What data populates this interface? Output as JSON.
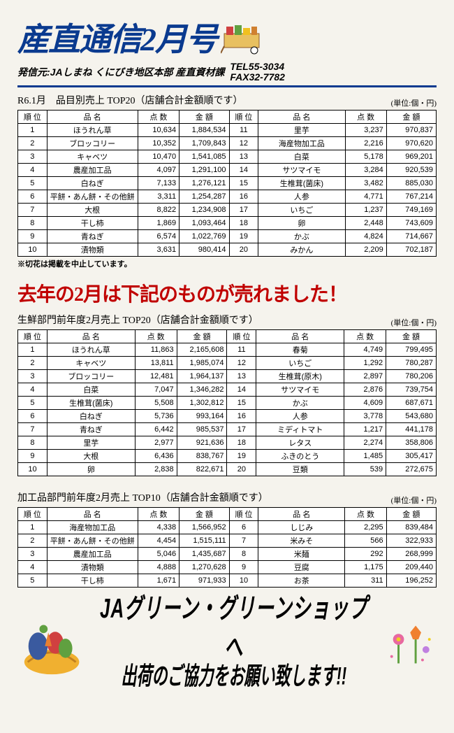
{
  "header": {
    "title": "産直通信2月号",
    "publisher": "発信元:JAしまね くにびき地区本部 産直資材課",
    "tel": "TEL55-3034",
    "fax": "FAX32-7782"
  },
  "table1": {
    "title": "R6.1月　品目別売上 TOP20（店舗合計金額順です）",
    "unit": "(単位:個・円)",
    "headers": [
      "順 位",
      "品 名",
      "点 数",
      "金 額",
      "順 位",
      "品 名",
      "点 数",
      "金 額"
    ],
    "rows": [
      [
        "1",
        "ほうれん草",
        "10,634",
        "1,884,534",
        "11",
        "里芋",
        "3,237",
        "970,837"
      ],
      [
        "2",
        "ブロッコリー",
        "10,352",
        "1,709,843",
        "12",
        "海産物加工品",
        "2,216",
        "970,620"
      ],
      [
        "3",
        "キャベツ",
        "10,470",
        "1,541,085",
        "13",
        "白菜",
        "5,178",
        "969,201"
      ],
      [
        "4",
        "農産加工品",
        "4,097",
        "1,291,100",
        "14",
        "サツマイモ",
        "3,284",
        "920,539"
      ],
      [
        "5",
        "白ねぎ",
        "7,133",
        "1,276,121",
        "15",
        "生椎茸(菌床)",
        "3,482",
        "885,030"
      ],
      [
        "6",
        "平餅・あん餅・その他餅",
        "3,311",
        "1,254,287",
        "16",
        "人参",
        "4,771",
        "767,214"
      ],
      [
        "7",
        "大根",
        "8,822",
        "1,234,908",
        "17",
        "いちご",
        "1,237",
        "749,169"
      ],
      [
        "8",
        "干し柿",
        "1,869",
        "1,093,464",
        "18",
        "卵",
        "2,448",
        "743,609"
      ],
      [
        "9",
        "青ねぎ",
        "6,574",
        "1,022,769",
        "19",
        "かぶ",
        "4,824",
        "714,667"
      ],
      [
        "10",
        "漬物類",
        "3,631",
        "980,414",
        "20",
        "みかん",
        "2,209",
        "702,187"
      ]
    ],
    "note": "※切花は掲載を中止しています。"
  },
  "banner": "去年の2月は下記のものが売れました！",
  "table2": {
    "title": "生鮮部門前年度2月売上 TOP20（店舗合計金額順です）",
    "unit": "(単位:個・円)",
    "headers": [
      "順 位",
      "品 名",
      "点 数",
      "金 額",
      "順 位",
      "品 名",
      "点 数",
      "金 額"
    ],
    "rows": [
      [
        "1",
        "ほうれん草",
        "11,863",
        "2,165,608",
        "11",
        "春菊",
        "4,749",
        "799,495"
      ],
      [
        "2",
        "キャベツ",
        "13,811",
        "1,985,074",
        "12",
        "いちご",
        "1,292",
        "780,287"
      ],
      [
        "3",
        "ブロッコリー",
        "12,481",
        "1,964,137",
        "13",
        "生椎茸(原木)",
        "2,897",
        "780,206"
      ],
      [
        "4",
        "白菜",
        "7,047",
        "1,346,282",
        "14",
        "サツマイモ",
        "2,876",
        "739,754"
      ],
      [
        "5",
        "生椎茸(菌床)",
        "5,508",
        "1,302,812",
        "15",
        "かぶ",
        "4,609",
        "687,671"
      ],
      [
        "6",
        "白ねぎ",
        "5,736",
        "993,164",
        "16",
        "人参",
        "3,778",
        "543,680"
      ],
      [
        "7",
        "青ねぎ",
        "6,442",
        "985,537",
        "17",
        "ミディトマト",
        "1,217",
        "441,178"
      ],
      [
        "8",
        "里芋",
        "2,977",
        "921,636",
        "18",
        "レタス",
        "2,274",
        "358,806"
      ],
      [
        "9",
        "大根",
        "6,436",
        "838,767",
        "19",
        "ふきのとう",
        "1,485",
        "305,417"
      ],
      [
        "10",
        "卵",
        "2,838",
        "822,671",
        "20",
        "豆類",
        "539",
        "272,675"
      ]
    ]
  },
  "table3": {
    "title": "加工品部門前年度2月売上 TOP10（店舗合計金額順です）",
    "unit": "(単位:個・円)",
    "headers": [
      "順 位",
      "品 名",
      "点 数",
      "金 額",
      "順 位",
      "品 名",
      "点 数",
      "金 額"
    ],
    "rows": [
      [
        "1",
        "海産物加工品",
        "4,338",
        "1,566,952",
        "6",
        "しじみ",
        "2,295",
        "839,484"
      ],
      [
        "2",
        "平餅・あん餅・その他餅",
        "4,454",
        "1,515,111",
        "7",
        "米みそ",
        "566",
        "322,933"
      ],
      [
        "3",
        "農産加工品",
        "5,046",
        "1,435,687",
        "8",
        "米麺",
        "292",
        "268,999"
      ],
      [
        "4",
        "漬物類",
        "4,888",
        "1,270,628",
        "9",
        "豆腐",
        "1,175",
        "209,440"
      ],
      [
        "5",
        "干し柿",
        "1,671",
        "971,933",
        "10",
        "お茶",
        "311",
        "196,252"
      ]
    ]
  },
  "footer": {
    "line1": "JAグリーン・グリーンショップへ",
    "line2": "出荷のご協力をお願い致します!!"
  },
  "colwidths": [
    "7%",
    "21%",
    "10%",
    "12%",
    "7%",
    "21%",
    "10%",
    "12%"
  ]
}
